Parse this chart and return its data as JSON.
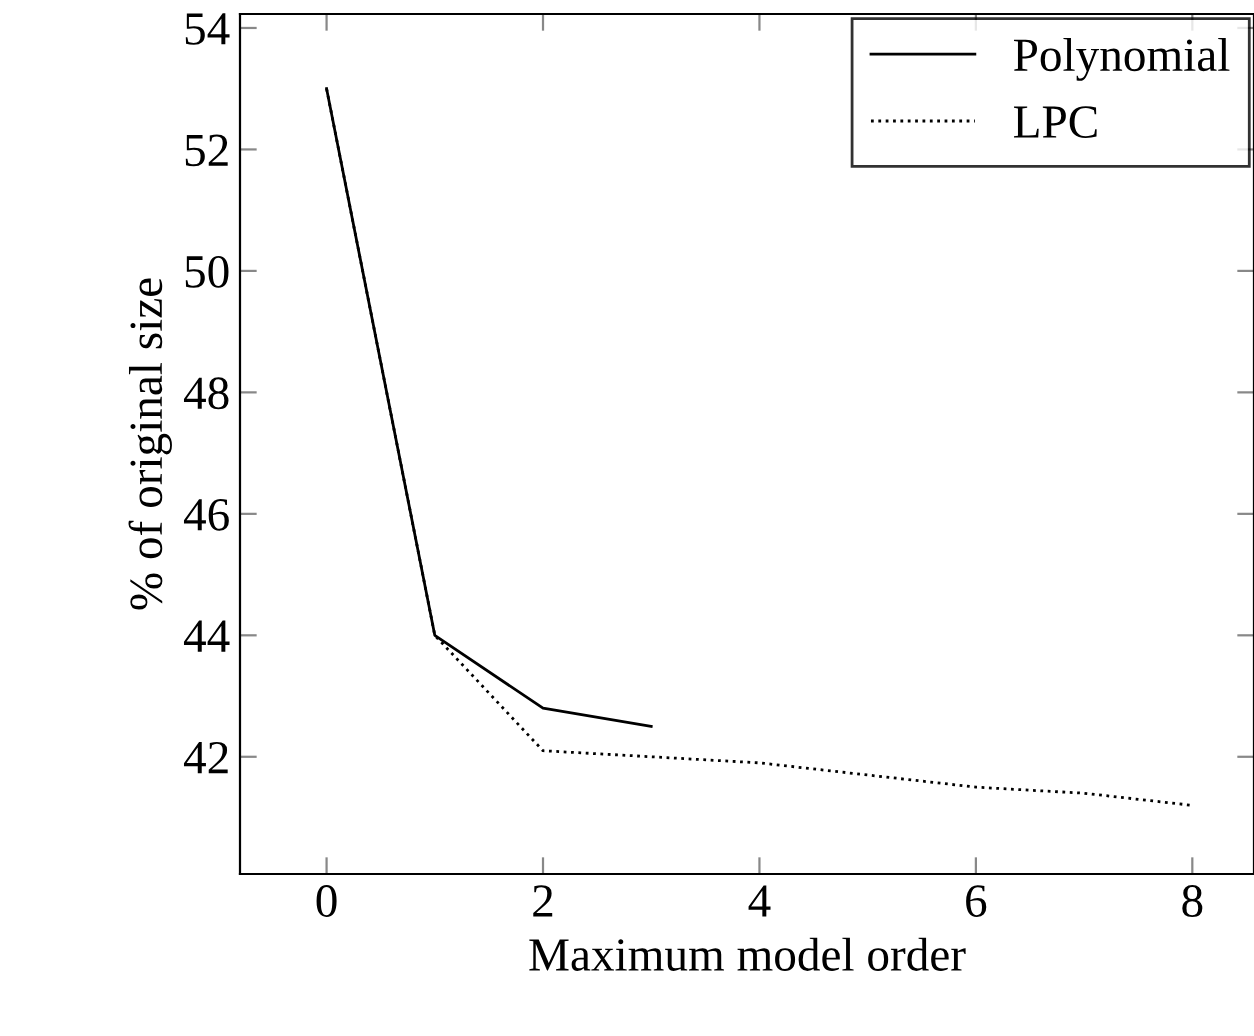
{
  "chart_data": {
    "type": "line",
    "xlabel": "Maximum model order",
    "ylabel": "% of original size",
    "xlim": [
      -0.8,
      8.57
    ],
    "ylim": [
      40.07,
      54.23
    ],
    "xticks": [
      0,
      2,
      4,
      6,
      8
    ],
    "yticks": [
      42,
      44,
      46,
      48,
      50,
      52,
      54
    ],
    "grid": false,
    "legend": "top right",
    "marker": "none",
    "series": [
      {
        "name": "Polynomial",
        "color": "#000000",
        "line_style": "solid",
        "x": [
          0,
          1,
          2,
          3
        ],
        "values": [
          53,
          44,
          42.8,
          42.5
        ]
      },
      {
        "name": "LPC",
        "color": "#000000",
        "line_style": "dotted",
        "x": [
          0,
          1,
          2,
          3,
          4,
          5,
          6,
          7,
          8
        ],
        "values": [
          53,
          44,
          42.1,
          42.0,
          41.9,
          41.7,
          41.5,
          41.4,
          41.2
        ]
      }
    ]
  }
}
